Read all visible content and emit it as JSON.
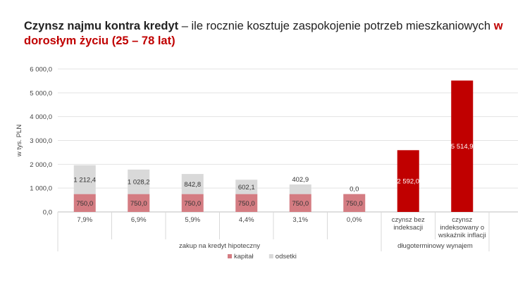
{
  "title": {
    "bold": "Czynsz najmu kontra kredyt",
    "rest": " – ile rocznie kosztuje zaspokojenie potrzeb mieszkaniowych ",
    "accent": "w dorosłym życiu (25 – 78 lat)"
  },
  "chart_data": {
    "type": "bar",
    "stacked": true,
    "ylabel": "w tys. PLN",
    "ylim": [
      0,
      6000
    ],
    "yticks": [
      "0,0",
      "1 000,0",
      "2 000,0",
      "3 000,0",
      "4 000,0",
      "5 000,0",
      "6 000,0"
    ],
    "ytick_values": [
      0,
      1000,
      2000,
      3000,
      4000,
      5000,
      6000
    ],
    "grid": true,
    "legend_position": "bottom",
    "categories": [
      "7,9%",
      "6,9%",
      "5,9%",
      "4,4%",
      "3,1%",
      "0,0%",
      "czynsz bez indeksacji",
      "czynsz indeksowany o wskaźnik inflacji"
    ],
    "category_lines": [
      [
        "7,9%"
      ],
      [
        "6,9%"
      ],
      [
        "5,9%"
      ],
      [
        "4,4%"
      ],
      [
        "3,1%"
      ],
      [
        "0,0%"
      ],
      [
        "czynsz bez",
        "indeksacji"
      ],
      [
        "czynsz",
        "indeksowany o",
        "wskaźnik inflacji"
      ]
    ],
    "groups": [
      {
        "label": "zakup na kredyt hipoteczny",
        "start": 0,
        "end": 5
      },
      {
        "label": "długoterminowy wynajem",
        "start": 6,
        "end": 7
      }
    ],
    "series": [
      {
        "name": "kapitał",
        "color": "#d47c82",
        "values": [
          750.0,
          750.0,
          750.0,
          750.0,
          750.0,
          750.0,
          null,
          null
        ],
        "labels": [
          "750,0",
          "750,0",
          "750,0",
          "750,0",
          "750,0",
          "750,0",
          "",
          ""
        ]
      },
      {
        "name": "odsetki",
        "color": "#d9d9d9",
        "values": [
          1212.4,
          1028.2,
          842.8,
          602.1,
          402.9,
          0.0,
          null,
          null
        ],
        "labels": [
          "1 212,4",
          "1 028,2",
          "842,8",
          "602,1",
          "402,9",
          "0,0",
          "",
          ""
        ]
      },
      {
        "name": "",
        "color": "#c00000",
        "values": [
          null,
          null,
          null,
          null,
          null,
          null,
          2592.0,
          5514.9
        ],
        "labels": [
          "",
          "",
          "",
          "",
          "",
          "",
          "2 592,0",
          "5 514,9"
        ]
      }
    ]
  }
}
